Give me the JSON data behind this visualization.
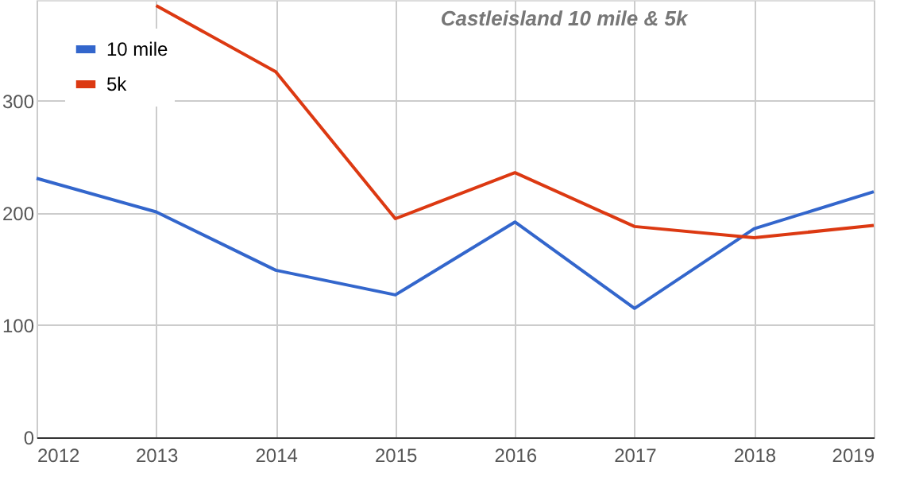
{
  "chart_data": {
    "type": "line",
    "title": "Castleisland 10 mile & 5k",
    "categories": [
      "2012",
      "2013",
      "2014",
      "2015",
      "2016",
      "2017",
      "2018",
      "2019"
    ],
    "series": [
      {
        "name": "10 mile",
        "color": "#3366cc",
        "values": [
          231,
          201,
          149,
          127,
          192,
          115,
          186,
          219
        ]
      },
      {
        "name": "5k",
        "color": "#dc3912",
        "values": [
          null,
          385,
          326,
          195,
          236,
          188,
          178,
          189
        ]
      }
    ],
    "ylim": [
      0,
      390
    ],
    "yticks": [
      0,
      100,
      200,
      300
    ],
    "grid": true,
    "legend": "top left",
    "marker": "none",
    "line_style": "solid"
  }
}
